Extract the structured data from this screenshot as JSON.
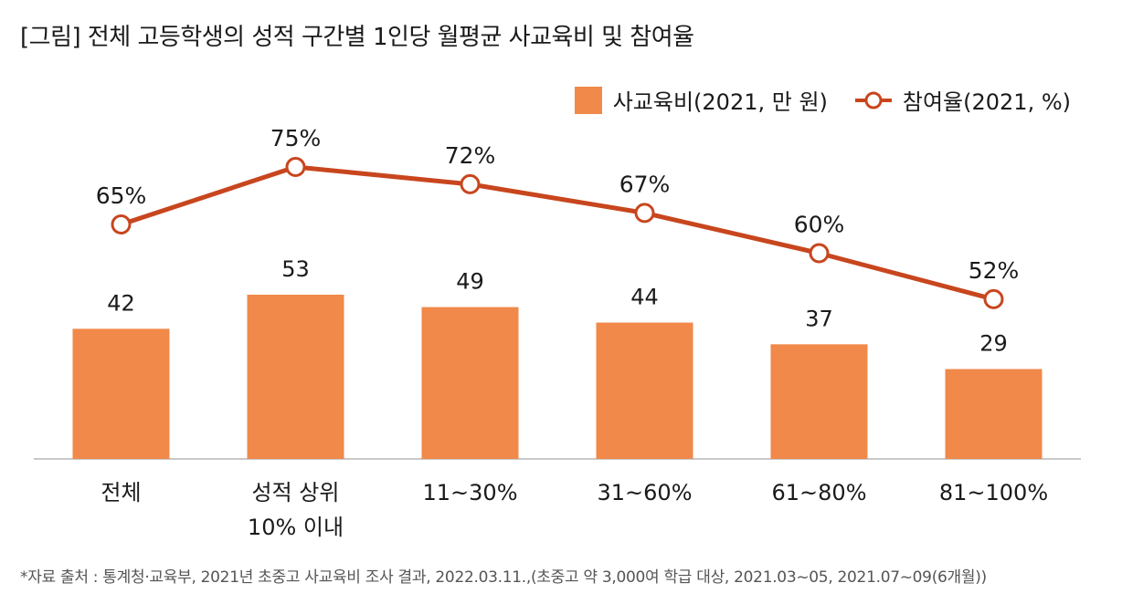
{
  "title": "[그림] 전체 고등학생의 성적 구간별 1인당 월평균 사교육비 및 참여율",
  "source": "*자료 출처 : 통계청·교육부, 2021년 초중고 사교육비 조사 결과, 2022.03.11.,(초중고 약 3,000여 학급 대상, 2021.03~05, 2021.07~09(6개월))",
  "colors": {
    "bar": "#f0894a",
    "line": "#c8461e",
    "axis": "#c8c8c8"
  },
  "chart_data": {
    "type": "bar",
    "categories": [
      [
        "전체"
      ],
      [
        "성적 상위",
        "10% 이내"
      ],
      [
        "11~30%"
      ],
      [
        "31~60%"
      ],
      [
        "61~80%"
      ],
      [
        "81~100%"
      ]
    ],
    "series": [
      {
        "name": "사교육비(2021, 만 원)",
        "type": "bar",
        "values": [
          42,
          53,
          49,
          44,
          37,
          29
        ],
        "labels": [
          "42",
          "53",
          "49",
          "44",
          "37",
          "29"
        ]
      },
      {
        "name": "참여율(2021, %)",
        "type": "line",
        "values": [
          65,
          75,
          72,
          67,
          60,
          52
        ],
        "labels": [
          "65%",
          "75%",
          "72%",
          "67%",
          "60%",
          "52%"
        ]
      }
    ],
    "legend_position": "top-right",
    "grid": false
  }
}
